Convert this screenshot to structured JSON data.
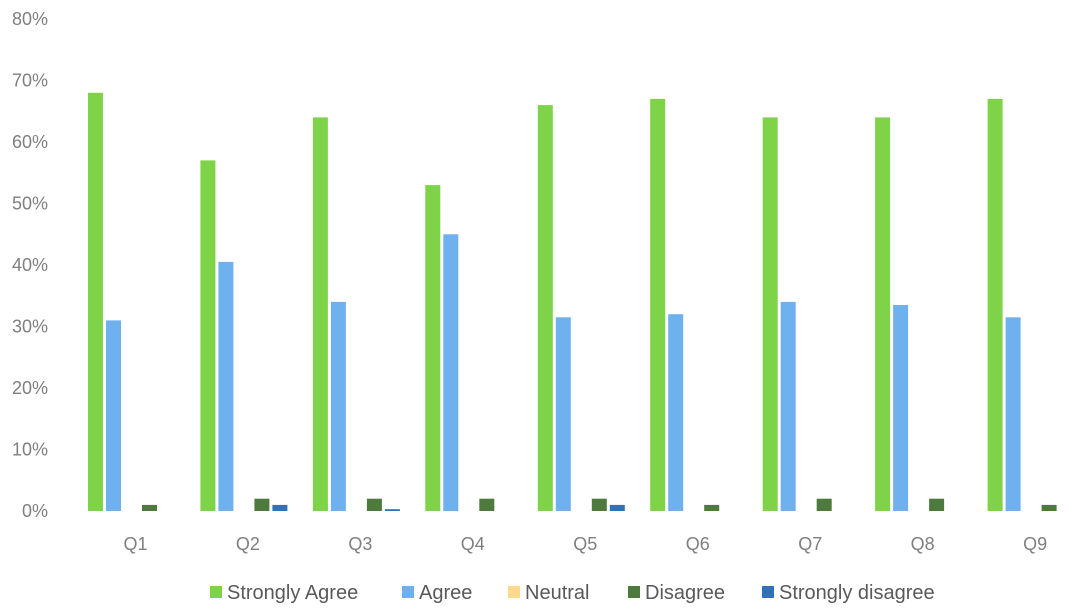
{
  "chart_data": {
    "type": "bar",
    "title": "",
    "xlabel": "",
    "ylabel": "",
    "ylim": [
      0,
      80
    ],
    "yticks": [
      "0%",
      "10%",
      "20%",
      "30%",
      "40%",
      "50%",
      "60%",
      "70%",
      "80%"
    ],
    "grid": false,
    "legend_position": "bottom",
    "categories": [
      "Q1",
      "Q2",
      "Q3",
      "Q4",
      "Q5",
      "Q6",
      "Q7",
      "Q8",
      "Q9"
    ],
    "series": [
      {
        "name": "Strongly Agree",
        "color": "#7ed348",
        "values": [
          68,
          57,
          64,
          53,
          66,
          67,
          64,
          64,
          67
        ]
      },
      {
        "name": "Agree",
        "color": "#6fb0ee",
        "values": [
          31,
          40.5,
          34,
          45,
          31.5,
          32,
          34,
          33.5,
          31.5
        ]
      },
      {
        "name": "Neutral",
        "color": "#fcd98c",
        "values": [
          0,
          0,
          0,
          0,
          0,
          0,
          0,
          0,
          0
        ]
      },
      {
        "name": "Disagree",
        "color": "#4e7a3e",
        "values": [
          1,
          2,
          2,
          2,
          2,
          1,
          2,
          2,
          1
        ]
      },
      {
        "name": "Strongly disagree",
        "color": "#2f72b5",
        "values": [
          0,
          1,
          0.3,
          0,
          1,
          0,
          0,
          0,
          0
        ]
      }
    ]
  }
}
